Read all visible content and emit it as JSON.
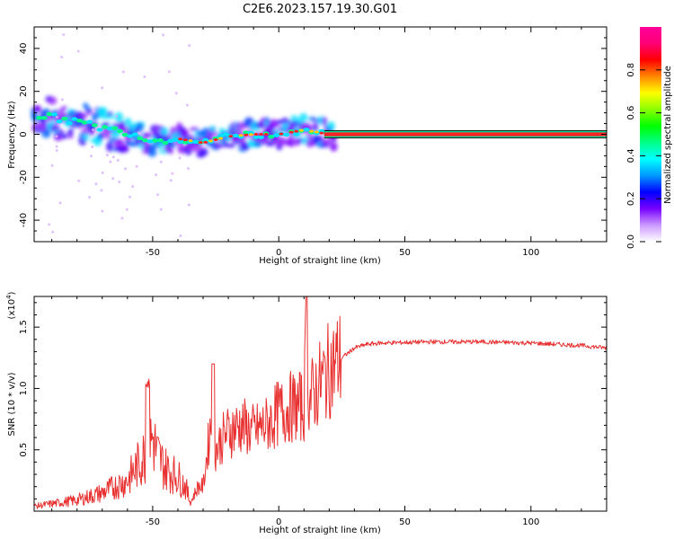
{
  "title": "C2E6.2023.157.19.30.G01",
  "chart_data": [
    {
      "type": "heatmap",
      "xlabel": "Height of straight line (km)",
      "ylabel": "Frequency (Hz)",
      "xlim": [
        -97,
        130
      ],
      "ylim": [
        -50,
        50
      ],
      "x_ticks": [
        -50,
        0,
        50,
        100
      ],
      "y_ticks": [
        40,
        20,
        0,
        -20,
        -40
      ],
      "colorbar": {
        "label": "Normalized spectral amplitude",
        "range": [
          0,
          1
        ],
        "ticks": [
          0.0,
          0.2,
          0.4,
          0.6,
          0.8
        ],
        "stops": [
          "#ffffff",
          "#cc99ff",
          "#7700ff",
          "#0000ff",
          "#0099ff",
          "#00ffff",
          "#00ff88",
          "#00ff00",
          "#88ff00",
          "#ffff00",
          "#ff8800",
          "#ff0000",
          "#ff0077",
          "#ff0099"
        ]
      },
      "ridge": {
        "x": [
          -97,
          -90,
          -80,
          -70,
          -60,
          -50,
          -40,
          -30,
          -20,
          -10,
          0,
          10,
          20,
          130
        ],
        "y": [
          9,
          8,
          6,
          3,
          1,
          -3,
          -2,
          -4,
          -1,
          0,
          0,
          2,
          0,
          0
        ]
      }
    },
    {
      "type": "line",
      "xlabel": "Height of straight line (km)",
      "ylabel": "SNR (10 * v/v)",
      "y_multiplier": "(x10",
      "y_multiplier_exp": "4",
      "y_multiplier_close": ")",
      "xlim": [
        -97,
        130
      ],
      "ylim": [
        0,
        17500
      ],
      "x_ticks": [
        -50,
        0,
        50,
        100
      ],
      "y_ticks": [
        "0.5",
        "1.0",
        "1.5"
      ],
      "y_tick_values": [
        5000,
        10000,
        15000
      ],
      "color": "#e83030",
      "series": [
        {
          "x": [
            -97,
            -90,
            -80,
            -70,
            -60,
            -55,
            -52,
            -50,
            -48,
            -45,
            -40,
            -37,
            -35,
            -32,
            -30,
            -27,
            -25,
            -22,
            -20,
            -15,
            -10,
            -5,
            0,
            5,
            10,
            11,
            12,
            15,
            20,
            25,
            30,
            35,
            40,
            50,
            60,
            70,
            80,
            90,
            100,
            110,
            120,
            125,
            130
          ],
          "y": [
            400,
            600,
            900,
            1500,
            2500,
            4000,
            5000,
            6000,
            4500,
            3500,
            2800,
            2000,
            700,
            2000,
            2000,
            7000,
            5000,
            6000,
            6500,
            7000,
            6500,
            7000,
            8000,
            8500,
            8500,
            15000,
            9000,
            10000,
            11500,
            12500,
            13300,
            13600,
            13700,
            13750,
            13800,
            13800,
            13800,
            13750,
            13700,
            13600,
            13500,
            13400,
            13300
          ]
        }
      ]
    }
  ]
}
